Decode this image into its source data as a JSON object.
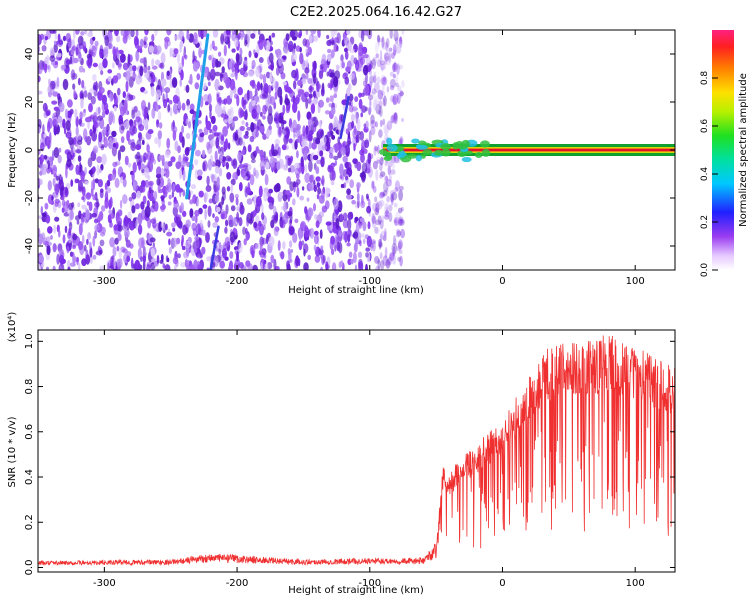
{
  "title": "C2E2.2025.064.16.42.G27",
  "colors": {
    "snr_line": "#f03030",
    "spec_band": "#e01030",
    "spec_speckle": "#7a2be8"
  },
  "chart_data": [
    {
      "type": "heatmap",
      "name": "spectrogram",
      "xlabel": "Height of straight line (km)",
      "ylabel": "Frequency (Hz)",
      "xlim": [
        -350,
        130
      ],
      "ylim": [
        -50,
        50
      ],
      "x_ticks": [
        -300,
        -200,
        -100,
        0,
        100
      ],
      "y_ticks": [
        -40,
        -20,
        0,
        20,
        40
      ],
      "noise_region_x": [
        -350,
        -75
      ],
      "carrier_start_x": -90,
      "carrier_frequency": 0,
      "features": [
        {
          "x1": -238,
          "y1": -20,
          "x2": -222,
          "y2": 48
        },
        {
          "x1": -220,
          "y1": -50,
          "x2": -214,
          "y2": -32
        },
        {
          "x1": -122,
          "y1": 5,
          "x2": -116,
          "y2": 22
        }
      ],
      "colorbar": {
        "label": "Normalized spectral amplitude",
        "range": [
          0.0,
          1.0
        ],
        "ticks": [
          0.0,
          0.2,
          0.4,
          0.6,
          0.8
        ]
      }
    },
    {
      "type": "line",
      "name": "snr",
      "xlabel": "Height of straight line (km)",
      "ylabel": "SNR (10 * v/v)",
      "y_multiplier": "(x10⁴)",
      "xlim": [
        -350,
        130
      ],
      "ylim": [
        -0.02,
        1.05
      ],
      "x_ticks": [
        -300,
        -200,
        -100,
        0,
        100
      ],
      "y_ticks": [
        0.0,
        0.2,
        0.4,
        0.6,
        0.8,
        1.0
      ],
      "envelope": {
        "x": [
          -350,
          -250,
          -220,
          -150,
          -100,
          -60,
          -50,
          -45,
          -40,
          -30,
          -20,
          -10,
          0,
          10,
          20,
          30,
          40,
          50,
          60,
          70,
          80,
          90,
          100,
          110,
          120,
          130
        ],
        "y": [
          0.02,
          0.025,
          0.045,
          0.025,
          0.03,
          0.03,
          0.08,
          0.45,
          0.42,
          0.5,
          0.55,
          0.6,
          0.65,
          0.75,
          0.85,
          0.95,
          1.0,
          1.02,
          1.0,
          1.02,
          1.04,
          1.0,
          0.98,
          0.95,
          0.92,
          0.9
        ]
      }
    }
  ]
}
